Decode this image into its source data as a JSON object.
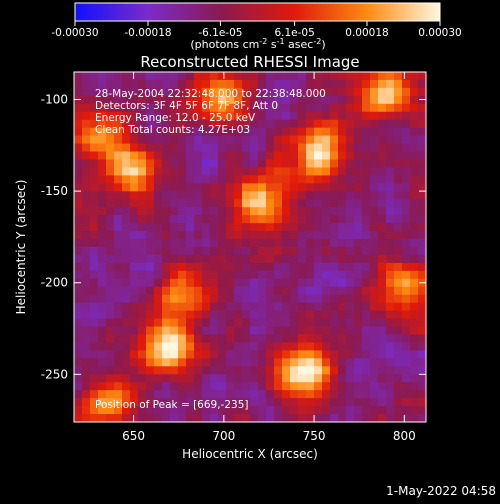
{
  "window": {
    "background": "#000000"
  },
  "colorbar": {
    "tick_labels": [
      "-0.00030",
      "-0.00018",
      "-6.1e-05",
      "6.1e-05",
      "0.00018",
      "0.00030"
    ],
    "tick_values": [
      -0.0003,
      -0.00018,
      -6.1e-05,
      6.1e-05,
      0.00018,
      0.0003
    ],
    "range": [
      -0.0003,
      0.0003
    ],
    "units_label": "(photons cm",
    "units_exp1": "-2",
    "units_s": " s",
    "units_exp2": "-1",
    "units_asec": " asec",
    "units_exp3": "-2",
    "units_close": ")",
    "colors": [
      "#1010ff",
      "#7a2cc8",
      "#8b1a50",
      "#e01a0a",
      "#ff8a10",
      "#fff8e0"
    ]
  },
  "plot": {
    "title": "Reconstructed RHESSI Image",
    "xlabel": "Heliocentric X (arcsec)",
    "ylabel": "Heliocentric Y (arcsec)",
    "x_ticks": [
      "650",
      "700",
      "750",
      "800"
    ],
    "x_tick_values": [
      650,
      700,
      750,
      800
    ],
    "y_ticks": [
      "-100",
      "-150",
      "-200",
      "-250"
    ],
    "y_tick_values": [
      -100,
      -150,
      -200,
      -250
    ],
    "xlim": [
      617,
      812
    ],
    "ylim": [
      -276,
      -85
    ],
    "annotations": {
      "time_range": "28-May-2004 22:32:48.000 to 22:38:48.000",
      "detectors": "Detectors: 3F 4F 5F 6F 7F 8F, Att 0",
      "energy": "Energy Range: 12.0 - 25.0 keV",
      "clean": "Clean     Total counts: 4.27E+03",
      "peak": "Position of Peak = [669,-235]"
    }
  },
  "footer": {
    "date": "1-May-2022 04:58"
  },
  "chart_data": {
    "type": "heatmap",
    "title": "Reconstructed RHESSI Image",
    "xlabel": "Heliocentric X (arcsec)",
    "ylabel": "Heliocentric Y (arcsec)",
    "xlim": [
      617,
      812
    ],
    "ylim": [
      -276,
      -85
    ],
    "colorbar_range": [
      -0.0003,
      0.0003
    ],
    "peak": [
      669,
      -235
    ],
    "bright_sources": [
      {
        "x": 669,
        "y": -235,
        "value": 0.0003
      },
      {
        "x": 790,
        "y": -95,
        "value": 0.00029
      },
      {
        "x": 752,
        "y": -130,
        "value": 0.00028
      },
      {
        "x": 720,
        "y": -155,
        "value": 0.00027
      },
      {
        "x": 745,
        "y": -250,
        "value": 0.00028
      },
      {
        "x": 698,
        "y": -100,
        "value": 0.00026
      },
      {
        "x": 650,
        "y": -140,
        "value": 0.00024
      },
      {
        "x": 632,
        "y": -120,
        "value": 0.00022
      },
      {
        "x": 800,
        "y": -205,
        "value": 0.00022
      },
      {
        "x": 680,
        "y": -205,
        "value": 0.00018
      },
      {
        "x": 637,
        "y": -265,
        "value": 0.0002
      }
    ]
  }
}
